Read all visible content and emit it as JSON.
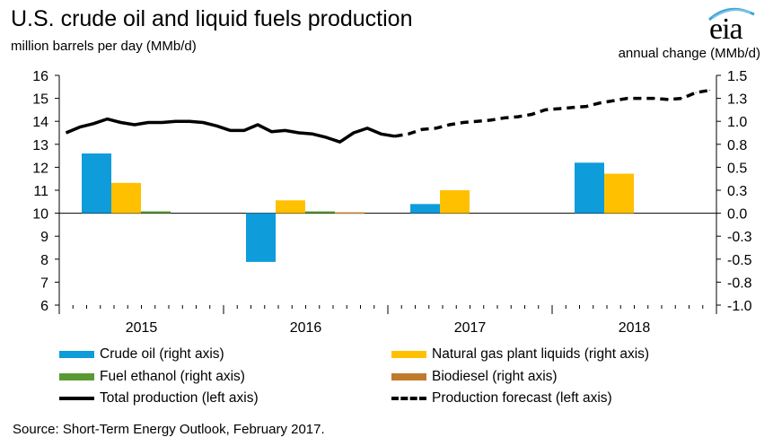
{
  "header": {
    "title": "U.S. crude oil and liquid fuels production",
    "left_axis_title": "million barrels per day (MMb/d)",
    "right_axis_title": "annual  change  (MMb/d)",
    "logo_text": "eia"
  },
  "source": "Source: Short-Term Energy Outlook, February 2017.",
  "colors": {
    "crude": "#0e9cdb",
    "ngpl": "#ffc000",
    "ethanol": "#5a9a32",
    "biodiesel": "#c07a2c",
    "line": "#000000",
    "logo_arc": "#3aa5d6"
  },
  "chart_data": {
    "type": "bar+line",
    "categories": [
      "2015",
      "2016",
      "2017",
      "2018"
    ],
    "left_axis": {
      "range": [
        6,
        16
      ],
      "ticks": [
        "6",
        "7",
        "8",
        "9",
        "10",
        "11",
        "12",
        "13",
        "14",
        "15",
        "16"
      ]
    },
    "right_axis": {
      "range": [
        -1.0,
        1.5
      ],
      "ticks": [
        "-1.0",
        "-0.8",
        "-0.5",
        "-0.3",
        "0.0",
        "0.3",
        "0.5",
        "0.8",
        "1.0",
        "1.3",
        "1.5"
      ]
    },
    "bar_series": [
      {
        "name": "Crude oil (right axis)",
        "color_key": "crude",
        "values": [
          0.65,
          -0.53,
          0.1,
          0.55
        ]
      },
      {
        "name": "Natural gas plant liquids (right axis)",
        "color_key": "ngpl",
        "values": [
          0.33,
          0.14,
          0.25,
          0.43
        ]
      },
      {
        "name": "Fuel ethanol (right axis)",
        "color_key": "ethanol",
        "values": [
          0.02,
          0.02,
          0.0,
          0.0
        ]
      },
      {
        "name": "Biodiesel (right axis)",
        "color_key": "biodiesel",
        "values": [
          0.0,
          0.01,
          0.0,
          0.0
        ]
      }
    ],
    "line_series": [
      {
        "name": "Total production (left axis)",
        "style": "solid",
        "values": [
          13.5,
          13.75,
          13.9,
          14.1,
          13.95,
          13.85,
          13.95,
          13.95,
          14.0,
          14.0,
          13.95,
          13.8,
          13.6,
          13.6,
          13.85,
          13.55,
          13.6,
          13.5,
          13.45,
          13.3,
          13.1,
          13.5,
          13.7,
          13.45,
          13.35
        ]
      },
      {
        "name": "Production forecast (left axis)",
        "style": "dashed",
        "values": [
          13.35,
          13.45,
          13.65,
          13.7,
          13.85,
          13.95,
          14.0,
          14.05,
          14.15,
          14.2,
          14.3,
          14.5,
          14.55,
          14.6,
          14.65,
          14.8,
          14.9,
          15.0,
          15.0,
          15.0,
          14.95,
          15.0,
          15.25,
          15.35
        ]
      }
    ],
    "legend": [
      {
        "name": "Crude oil (right axis)",
        "kind": "bar",
        "color_key": "crude"
      },
      {
        "name": "Natural gas plant liquids (right axis)",
        "kind": "bar",
        "color_key": "ngpl"
      },
      {
        "name": "Fuel ethanol (right axis)",
        "kind": "bar",
        "color_key": "ethanol"
      },
      {
        "name": "Biodiesel (right axis)",
        "kind": "bar",
        "color_key": "biodiesel"
      },
      {
        "name": "Total production (left axis)",
        "kind": "solid"
      },
      {
        "name": "Production forecast (left axis)",
        "kind": "dashed"
      }
    ],
    "legend_placement": "bottom",
    "grid": false
  }
}
